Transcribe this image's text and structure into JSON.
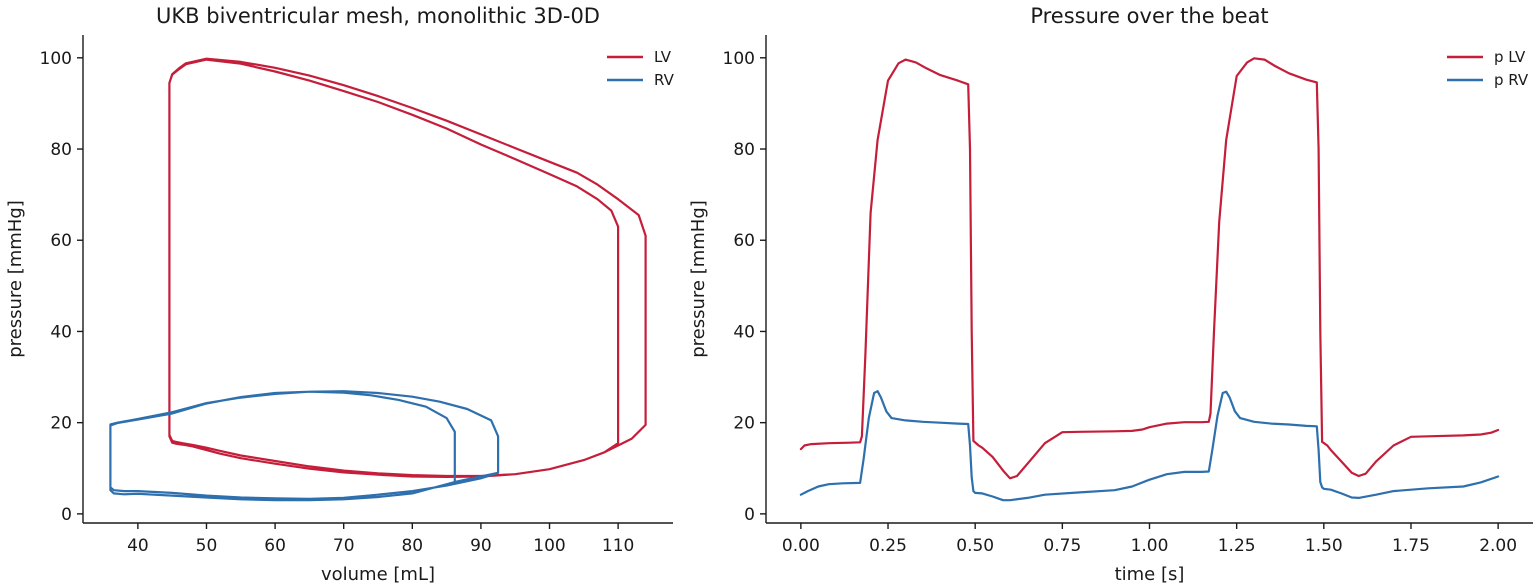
{
  "colors": {
    "lv": "#c41e3a",
    "rv": "#2e6fad",
    "text": "#1a1a1a"
  },
  "chart_data": [
    {
      "type": "line",
      "title": "UKB biventricular mesh, monolithic 3D-0D",
      "xlabel": "volume [mL]",
      "ylabel": "pressure [mmHg]",
      "xlim": [
        32,
        118
      ],
      "ylim": [
        -2,
        105
      ],
      "xticks": [
        40,
        50,
        60,
        70,
        80,
        90,
        100,
        110
      ],
      "yticks": [
        0,
        20,
        40,
        60,
        80,
        100
      ],
      "legend": {
        "placement": "top-right"
      },
      "series": [
        {
          "name": "LV",
          "color": "#c41e3a",
          "x": [
            110.0,
            110.0,
            109.0,
            107.0,
            104.0,
            100.0,
            95.0,
            90.0,
            85.0,
            80.0,
            75.0,
            70.0,
            65.0,
            60.0,
            55.0,
            50.0,
            47.0,
            46.0,
            45.0,
            44.6,
            44.6,
            44.6,
            45.0,
            45.5,
            46.5,
            48.0,
            50.0,
            52.0,
            55.0,
            60.0,
            65.0,
            70.0,
            75.0,
            80.0,
            85.0,
            90.0,
            95.0,
            100.0,
            105.0,
            108.0,
            110.0,
            112.0,
            114.0,
            114.0,
            114.0,
            113.0,
            110.0,
            107.0,
            104.0,
            100.0,
            95.0,
            90.0,
            85.0,
            80.0,
            75.0,
            70.0,
            65.0,
            60.0,
            55.0,
            50.0,
            47.0,
            46.0,
            45.0,
            44.6,
            44.6,
            44.6,
            45.0,
            45.5,
            46.5,
            48.0,
            50.0,
            52.0,
            55.0,
            60.0,
            65.0,
            70.0,
            75.0,
            80.0,
            85.0,
            90.0,
            95.0,
            100.0,
            105.0,
            108.0,
            110.0,
            110.0
          ],
          "y": [
            16.0,
            63.0,
            66.5,
            69.0,
            71.8,
            74.5,
            77.8,
            81.0,
            84.5,
            87.5,
            90.3,
            92.7,
            95.0,
            97.0,
            98.7,
            99.6,
            98.6,
            97.5,
            96.3,
            94.5,
            60.0,
            17.0,
            15.6,
            15.4,
            15.2,
            14.8,
            14.0,
            13.2,
            12.2,
            11.0,
            9.9,
            9.1,
            8.6,
            8.2,
            8.1,
            8.2,
            8.7,
            9.8,
            11.8,
            13.5,
            15.0,
            16.5,
            19.5,
            40.0,
            61.0,
            65.5,
            69.0,
            72.2,
            74.8,
            77.2,
            80.2,
            83.2,
            86.2,
            89.0,
            91.6,
            94.0,
            96.1,
            97.8,
            99.1,
            99.8,
            98.8,
            97.7,
            96.4,
            94.5,
            60.0,
            17.3,
            16.0,
            15.8,
            15.5,
            15.1,
            14.5,
            13.8,
            12.8,
            11.6,
            10.4,
            9.5,
            8.9,
            8.5,
            8.3,
            8.3,
            8.7,
            9.8,
            11.8,
            13.5,
            15.5,
            16.3
          ]
        },
        {
          "name": "RV",
          "color": "#2e6fad",
          "x": [
            92.5,
            92.5,
            91.5,
            88.0,
            84.0,
            80.0,
            75.0,
            70.0,
            65.0,
            60.0,
            55.0,
            50.0,
            45.0,
            40.0,
            37.0,
            36.0,
            36.0,
            36.0,
            36.5,
            38.0,
            40.0,
            45.0,
            50.0,
            55.0,
            60.0,
            65.0,
            70.0,
            75.0,
            80.0,
            85.0,
            90.0,
            92.5,
            86.2,
            86.2,
            85.0,
            82.0,
            78.0,
            74.0,
            70.0,
            65.0,
            60.0,
            55.0,
            50.0,
            45.0,
            40.0,
            37.0,
            36.0,
            36.0,
            36.0,
            36.5,
            38.0,
            40.0,
            45.0,
            50.0,
            55.0,
            60.0,
            65.0,
            70.0,
            75.0,
            80.0,
            86.2
          ],
          "y": [
            9.0,
            17.0,
            20.5,
            23.0,
            24.6,
            25.7,
            26.5,
            26.9,
            26.8,
            26.3,
            25.5,
            24.3,
            22.3,
            20.8,
            20.0,
            19.6,
            12.0,
            5.8,
            5.2,
            5.0,
            5.0,
            4.6,
            4.0,
            3.6,
            3.4,
            3.3,
            3.5,
            4.2,
            5.0,
            6.2,
            7.8,
            9.0,
            7.0,
            18.0,
            21.0,
            23.5,
            25.0,
            26.0,
            26.6,
            26.8,
            26.5,
            25.6,
            24.2,
            22.0,
            20.7,
            19.9,
            19.4,
            12.0,
            5.2,
            4.5,
            4.3,
            4.4,
            4.0,
            3.6,
            3.2,
            3.0,
            3.0,
            3.2,
            3.7,
            4.5,
            7.0
          ]
        }
      ]
    },
    {
      "type": "line",
      "title": "Pressure over the beat",
      "xlabel": "time [s]",
      "ylabel": "pressure [mmHg]",
      "xlim": [
        -0.1,
        2.1
      ],
      "ylim": [
        -2,
        105
      ],
      "xticks": [
        "0.00",
        "0.25",
        "0.50",
        "0.75",
        "1.00",
        "1.25",
        "1.50",
        "1.75",
        "2.00"
      ],
      "yticks": [
        0,
        20,
        40,
        60,
        80,
        100
      ],
      "legend": {
        "placement": "top-right"
      },
      "series": [
        {
          "name": "p LV",
          "color": "#c41e3a",
          "x": [
            0.0,
            0.01,
            0.03,
            0.08,
            0.14,
            0.17,
            0.175,
            0.185,
            0.2,
            0.22,
            0.25,
            0.28,
            0.3,
            0.33,
            0.36,
            0.4,
            0.45,
            0.48,
            0.485,
            0.49,
            0.495,
            0.51,
            0.52,
            0.55,
            0.58,
            0.6,
            0.62,
            0.65,
            0.7,
            0.75,
            0.8,
            0.9,
            0.95,
            0.98,
            1.0,
            1.05,
            1.1,
            1.15,
            1.17,
            1.175,
            1.185,
            1.2,
            1.22,
            1.25,
            1.28,
            1.3,
            1.33,
            1.36,
            1.4,
            1.45,
            1.48,
            1.485,
            1.49,
            1.495,
            1.51,
            1.52,
            1.55,
            1.58,
            1.6,
            1.62,
            1.65,
            1.7,
            1.75,
            1.8,
            1.9,
            1.95,
            1.98,
            2.0
          ],
          "y": [
            14.2,
            15.0,
            15.3,
            15.5,
            15.6,
            15.7,
            17.0,
            35.0,
            66.0,
            82.0,
            95.0,
            98.8,
            99.6,
            99.0,
            97.7,
            96.2,
            95.0,
            94.2,
            80.0,
            40.0,
            16.0,
            15.0,
            14.5,
            12.5,
            9.5,
            7.8,
            8.3,
            11.0,
            15.5,
            17.9,
            18.0,
            18.1,
            18.2,
            18.5,
            19.0,
            19.8,
            20.1,
            20.1,
            20.2,
            22.0,
            40.0,
            64.0,
            82.0,
            96.0,
            99.0,
            99.9,
            99.6,
            98.2,
            96.6,
            95.2,
            94.6,
            80.0,
            40.0,
            15.8,
            15.0,
            14.0,
            11.5,
            9.0,
            8.3,
            8.8,
            11.5,
            15.0,
            16.9,
            17.0,
            17.2,
            17.4,
            17.8,
            18.4
          ]
        },
        {
          "name": "p RV",
          "color": "#2e6fad",
          "x": [
            0.0,
            0.02,
            0.05,
            0.08,
            0.12,
            0.17,
            0.18,
            0.195,
            0.21,
            0.22,
            0.23,
            0.245,
            0.26,
            0.3,
            0.35,
            0.4,
            0.45,
            0.48,
            0.485,
            0.49,
            0.495,
            0.5,
            0.52,
            0.55,
            0.58,
            0.6,
            0.65,
            0.7,
            0.8,
            0.9,
            0.95,
            1.0,
            1.05,
            1.1,
            1.15,
            1.17,
            1.18,
            1.195,
            1.21,
            1.22,
            1.23,
            1.245,
            1.26,
            1.3,
            1.35,
            1.4,
            1.45,
            1.48,
            1.485,
            1.49,
            1.495,
            1.5,
            1.52,
            1.55,
            1.58,
            1.6,
            1.65,
            1.7,
            1.8,
            1.9,
            1.95,
            2.0
          ],
          "y": [
            4.2,
            5.0,
            6.0,
            6.5,
            6.7,
            6.8,
            12.0,
            21.0,
            26.5,
            26.9,
            25.5,
            22.5,
            21.0,
            20.5,
            20.2,
            20.0,
            19.8,
            19.7,
            15.0,
            8.0,
            5.0,
            4.6,
            4.5,
            3.8,
            3.0,
            3.0,
            3.5,
            4.2,
            4.7,
            5.2,
            6.0,
            7.5,
            8.7,
            9.2,
            9.2,
            9.3,
            14.0,
            21.5,
            26.5,
            26.8,
            25.5,
            22.5,
            21.0,
            20.2,
            19.8,
            19.6,
            19.3,
            19.2,
            14.0,
            7.0,
            5.8,
            5.5,
            5.3,
            4.5,
            3.6,
            3.5,
            4.2,
            5.0,
            5.6,
            6.0,
            6.9,
            8.2
          ]
        }
      ]
    }
  ]
}
